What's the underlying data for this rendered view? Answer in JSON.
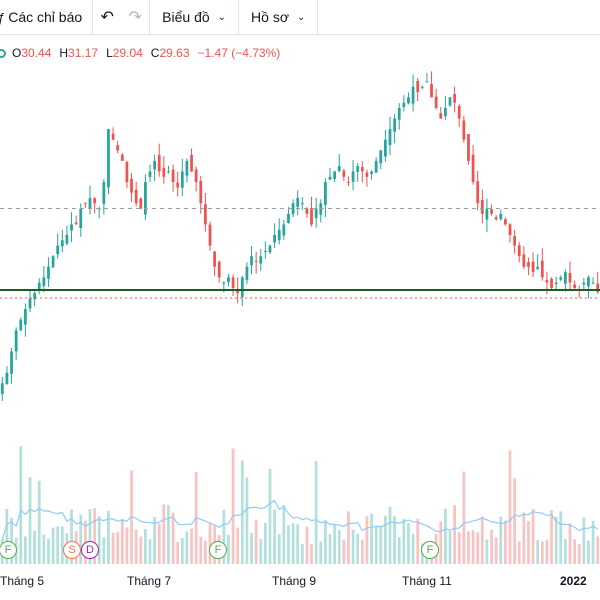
{
  "toolbar": {
    "indicators_label": "Các chỉ báo",
    "undo_icon": "undo-icon",
    "redo_icon": "redo-icon",
    "chart_label": "Biểu đồ",
    "profile_label": "Hồ sơ"
  },
  "legend": {
    "o_label": "O",
    "o_value": "30.44",
    "h_label": "H",
    "h_value": "31.17",
    "l_label": "L",
    "l_value": "29.04",
    "c_label": "C",
    "c_value": "29.63",
    "change": "−1.47 (−4.73%)"
  },
  "colors": {
    "up": "#26a69a",
    "down": "#ef5350",
    "support_line": "#1b5e20",
    "dashed_line": "#9e9e9e"
  },
  "events": [
    {
      "letter": "F",
      "color": "#4caf50"
    },
    {
      "letter": "S",
      "color": "#ff7043"
    },
    {
      "letter": "D",
      "color": "#9c27b0"
    },
    {
      "letter": "F",
      "color": "#4caf50"
    },
    {
      "letter": "F",
      "color": "#4caf50"
    }
  ],
  "xaxis": {
    "labels": [
      "Tháng 5",
      "Tháng 7",
      "Tháng 9",
      "Tháng 11",
      "2022"
    ]
  },
  "chart_data": {
    "type": "candlestick",
    "dashed_level": 37.5,
    "support_level": 29.8,
    "ohlc_path_close": [
      21,
      22,
      24,
      26,
      27,
      28,
      29,
      29.5,
      30.5,
      31,
      32,
      33,
      34,
      34.5,
      35,
      36,
      36,
      37.5,
      38,
      38.5,
      38,
      37.5,
      40,
      45,
      44,
      43,
      42,
      40,
      39,
      38,
      37.5,
      40,
      41,
      42,
      41,
      40.5,
      41,
      40,
      39.5,
      41,
      42,
      41,
      40,
      38,
      36,
      34,
      32,
      31,
      30.5,
      31,
      30,
      29.5,
      31,
      32,
      33,
      32.5,
      33,
      33.5,
      34,
      35,
      35.5,
      36,
      37,
      38,
      38.5,
      38,
      37,
      36,
      37.5,
      38,
      40,
      40.5,
      41,
      41.5,
      40.5,
      40,
      41,
      41.5,
      41,
      40.5,
      41,
      42,
      43,
      44,
      45,
      46,
      47,
      47.5,
      48,
      49,
      48.5,
      49,
      49.5,
      48,
      47,
      46,
      47,
      48,
      47.5,
      46,
      44,
      42,
      40,
      38,
      37,
      37.5,
      37,
      36.5,
      37,
      36,
      35,
      34,
      33,
      32,
      32,
      31.5,
      32,
      31,
      30.5,
      30,
      30.5,
      31,
      31.5,
      30.5,
      30,
      29.8,
      30.5,
      31,
      30.5,
      29.63
    ]
  }
}
